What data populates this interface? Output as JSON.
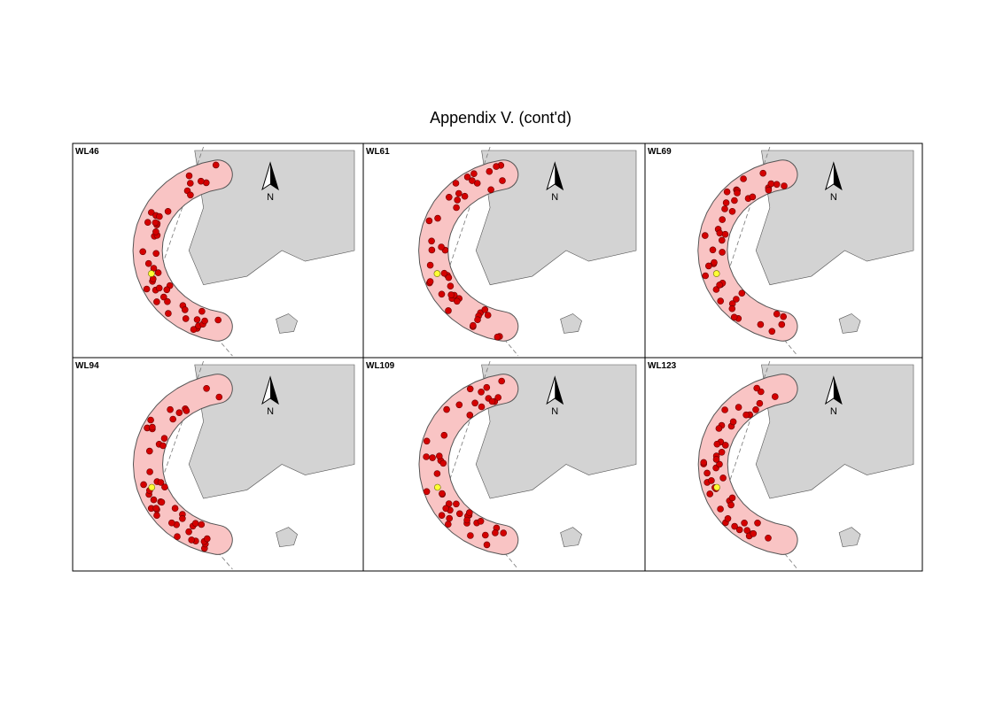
{
  "title": "Appendix V.  (cont'd)",
  "panels": [
    {
      "label": "WL46",
      "north": "N"
    },
    {
      "label": "WL61",
      "north": "N"
    },
    {
      "label": "WL69",
      "north": "N"
    },
    {
      "label": "WL94",
      "north": "N"
    },
    {
      "label": "WL109",
      "north": "N"
    },
    {
      "label": "WL123",
      "north": "N"
    }
  ]
}
